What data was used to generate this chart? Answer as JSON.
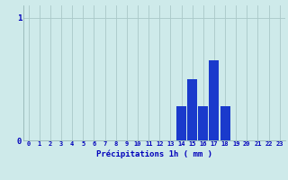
{
  "hours": [
    0,
    1,
    2,
    3,
    4,
    5,
    6,
    7,
    8,
    9,
    10,
    11,
    12,
    13,
    14,
    15,
    16,
    17,
    18,
    19,
    20,
    21,
    22,
    23
  ],
  "values": [
    0,
    0,
    0,
    0,
    0,
    0,
    0,
    0,
    0,
    0,
    0,
    0,
    0,
    0,
    0.28,
    0.5,
    0.28,
    0.65,
    0.28,
    0,
    0,
    0,
    0,
    0
  ],
  "bar_color": "#1a3acc",
  "background_color": "#ceeaea",
  "grid_color": "#aac8c8",
  "xlabel": "Précipitations 1h ( mm )",
  "xlabel_color": "#0000bb",
  "tick_color": "#0000bb",
  "ylim": [
    0,
    1.1
  ],
  "yticks": [
    0,
    1
  ],
  "figsize": [
    3.2,
    2.0
  ],
  "dpi": 100
}
